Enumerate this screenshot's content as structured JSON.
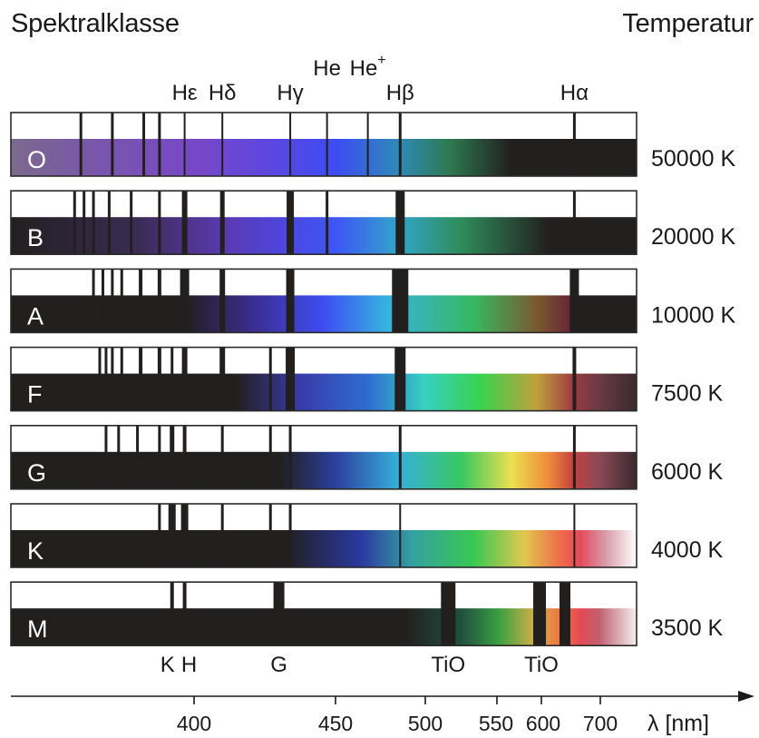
{
  "header": {
    "left_title": "Spektralklasse",
    "right_title": "Temperatur"
  },
  "top_labels": [
    {
      "text": "Hε",
      "nm": 397
    },
    {
      "text": "Hδ",
      "nm": 410
    },
    {
      "text": "Hγ",
      "nm": 434
    },
    {
      "text": "He",
      "nm": 447
    },
    {
      "text": "He",
      "sup": "+",
      "nm": 468
    },
    {
      "text": "Hβ",
      "nm": 486
    },
    {
      "text": "Hα",
      "nm": 656
    }
  ],
  "classes": [
    {
      "name": "O",
      "temperature": "50000 K"
    },
    {
      "name": "B",
      "temperature": "20000 K"
    },
    {
      "name": "A",
      "temperature": "10000 K"
    },
    {
      "name": "F",
      "temperature": "7500 K"
    },
    {
      "name": "G",
      "temperature": "6000 K"
    },
    {
      "name": "K",
      "temperature": "4000 K"
    },
    {
      "name": "M",
      "temperature": "3500 K"
    }
  ],
  "bottom_labels": [
    {
      "text": "K",
      "nm": 393
    },
    {
      "text": "H",
      "nm": 397
    },
    {
      "text": "G",
      "nm": 430
    },
    {
      "text": "TiO",
      "nm": 516
    },
    {
      "text": "TiO",
      "nm": 600
    }
  ],
  "axis": {
    "label": "λ [nm]",
    "ticks": [
      {
        "label": "400",
        "nm": 400
      },
      {
        "label": "450",
        "nm": 450
      },
      {
        "label": "500",
        "nm": 500
      },
      {
        "label": "550",
        "nm": 550
      },
      {
        "label": "600",
        "nm": 600
      },
      {
        "label": "700",
        "nm": 700
      }
    ]
  },
  "colors": {
    "band_dark": "#221f1f",
    "outline": "#2a2a2a",
    "spectrum_violet": "#7a49c8",
    "spectrum_blue": "#3d55f0",
    "spectrum_cyan": "#36b2e0",
    "spectrum_green": "#38d250",
    "spectrum_yellow": "#ece050",
    "spectrum_orange": "#ef8a3c",
    "spectrum_red": "#e44a54"
  }
}
